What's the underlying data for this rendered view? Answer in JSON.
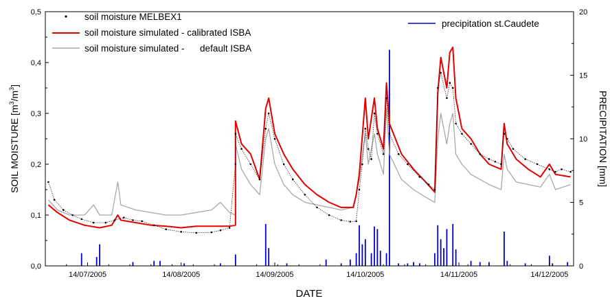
{
  "chart_data": {
    "type": "line",
    "xlabel": "DATE",
    "ylabel_left_main": "SOIL MOISTURE [m",
    "ylabel_left_sup1": "3",
    "ylabel_left_mid": "/m",
    "ylabel_left_sup2": "3",
    "ylabel_left_end": "]",
    "ylabel_right": "PRECIPITATION [mm]",
    "x_domain": [
      "2005-06-30",
      "2005-12-22"
    ],
    "x_ticks": [
      "14/07/2005",
      "14/08/2005",
      "14/09/2005",
      "14/10/2005",
      "14/11/2005",
      "14/12/2005"
    ],
    "x_tick_dates": [
      "2005-07-14",
      "2005-08-14",
      "2005-09-14",
      "2005-10-14",
      "2005-11-14",
      "2005-12-14"
    ],
    "ylim_left": [
      0,
      0.5
    ],
    "yticks_left": [
      "0,0",
      "0,1",
      "0,2",
      "0,3",
      "0,4",
      "0,5"
    ],
    "ylim_right": [
      0,
      20
    ],
    "yticks_right": [
      "0",
      "5",
      "10",
      "15",
      "20"
    ],
    "legend": [
      {
        "label": "soil moisture MELBEX1",
        "color": "#000000",
        "marker": "dot"
      },
      {
        "label": "soil moisture simulated - calibrated ISBA",
        "color": "#e00000",
        "marker": "line"
      },
      {
        "label": "soil moisture simulated -      default ISBA",
        "color": "#a8a8a8",
        "marker": "line"
      },
      {
        "label": "precipitation st.Caudete",
        "color": "#0000cc",
        "marker": "line"
      }
    ],
    "series": [
      {
        "name": "soil moisture MELBEX1",
        "axis": "left",
        "color": "#000000",
        "points": [
          [
            "2005-07-01",
            0.165
          ],
          [
            "2005-07-03",
            0.13
          ],
          [
            "2005-07-06",
            0.11
          ],
          [
            "2005-07-09",
            0.1
          ],
          [
            "2005-07-12",
            0.092
          ],
          [
            "2005-07-16",
            0.085
          ],
          [
            "2005-07-20",
            0.085
          ],
          [
            "2005-07-23",
            0.09
          ],
          [
            "2005-07-26",
            0.095
          ],
          [
            "2005-07-29",
            0.09
          ],
          [
            "2005-08-01",
            0.088
          ],
          [
            "2005-08-05",
            0.08
          ],
          [
            "2005-08-09",
            0.072
          ],
          [
            "2005-08-14",
            0.067
          ],
          [
            "2005-08-19",
            0.065
          ],
          [
            "2005-08-24",
            0.066
          ],
          [
            "2005-08-27",
            0.07
          ],
          [
            "2005-08-30",
            0.075
          ],
          [
            "2005-09-01",
            0.2
          ],
          [
            "2005-09-01",
            0.26
          ],
          [
            "2005-09-03",
            0.23
          ],
          [
            "2005-09-06",
            0.2
          ],
          [
            "2005-09-09",
            0.17
          ],
          [
            "2005-09-11",
            0.27
          ],
          [
            "2005-09-12",
            0.3
          ],
          [
            "2005-09-14",
            0.25
          ],
          [
            "2005-09-17",
            0.2
          ],
          [
            "2005-09-20",
            0.17
          ],
          [
            "2005-09-24",
            0.14
          ],
          [
            "2005-09-28",
            0.115
          ],
          [
            "2005-10-02",
            0.1
          ],
          [
            "2005-10-06",
            0.09
          ],
          [
            "2005-10-09",
            0.087
          ],
          [
            "2005-10-11",
            0.088
          ],
          [
            "2005-10-12",
            0.15
          ],
          [
            "2005-10-13",
            0.2
          ],
          [
            "2005-10-14",
            0.27
          ],
          [
            "2005-10-15",
            0.23
          ],
          [
            "2005-10-16",
            0.21
          ],
          [
            "2005-10-17",
            0.3
          ],
          [
            "2005-10-18",
            0.26
          ],
          [
            "2005-10-20",
            0.22
          ],
          [
            "2005-10-21",
            0.33
          ],
          [
            "2005-10-22",
            0.26
          ],
          [
            "2005-10-25",
            0.22
          ],
          [
            "2005-10-28",
            0.2
          ],
          [
            "2005-11-01",
            0.175
          ],
          [
            "2005-11-04",
            0.16
          ],
          [
            "2005-11-06",
            0.15
          ],
          [
            "2005-11-07",
            0.35
          ],
          [
            "2005-11-08",
            0.38
          ],
          [
            "2005-11-10",
            0.33
          ],
          [
            "2005-11-11",
            0.36
          ],
          [
            "2005-11-12",
            0.35
          ],
          [
            "2005-11-13",
            0.28
          ],
          [
            "2005-11-15",
            0.26
          ],
          [
            "2005-11-18",
            0.24
          ],
          [
            "2005-11-21",
            0.22
          ],
          [
            "2005-11-24",
            0.21
          ],
          [
            "2005-11-26",
            0.205
          ],
          [
            "2005-11-28",
            0.2
          ],
          [
            "2005-11-29",
            0.26
          ],
          [
            "2005-11-30",
            0.25
          ],
          [
            "2005-12-02",
            0.23
          ],
          [
            "2005-12-06",
            0.21
          ],
          [
            "2005-12-10",
            0.2
          ],
          [
            "2005-12-14",
            0.19
          ],
          [
            "2005-12-16",
            0.185
          ],
          [
            "2005-12-18",
            0.19
          ],
          [
            "2005-12-21",
            0.185
          ]
        ]
      },
      {
        "name": "soil moisture simulated - calibrated ISBA",
        "axis": "left",
        "color": "#e00000",
        "points": [
          [
            "2005-07-01",
            0.12
          ],
          [
            "2005-07-04",
            0.105
          ],
          [
            "2005-07-08",
            0.09
          ],
          [
            "2005-07-13",
            0.08
          ],
          [
            "2005-07-18",
            0.075
          ],
          [
            "2005-07-22",
            0.08
          ],
          [
            "2005-07-24",
            0.1
          ],
          [
            "2005-07-25",
            0.09
          ],
          [
            "2005-07-30",
            0.085
          ],
          [
            "2005-08-04",
            0.08
          ],
          [
            "2005-08-09",
            0.078
          ],
          [
            "2005-08-14",
            0.075
          ],
          [
            "2005-08-19",
            0.078
          ],
          [
            "2005-08-24",
            0.078
          ],
          [
            "2005-08-30",
            0.078
          ],
          [
            "2005-09-01",
            0.08
          ],
          [
            "2005-09-01",
            0.285
          ],
          [
            "2005-09-03",
            0.24
          ],
          [
            "2005-09-06",
            0.22
          ],
          [
            "2005-09-09",
            0.17
          ],
          [
            "2005-09-11",
            0.31
          ],
          [
            "2005-09-12",
            0.33
          ],
          [
            "2005-09-14",
            0.26
          ],
          [
            "2005-09-17",
            0.22
          ],
          [
            "2005-09-20",
            0.19
          ],
          [
            "2005-09-24",
            0.16
          ],
          [
            "2005-09-28",
            0.14
          ],
          [
            "2005-10-02",
            0.125
          ],
          [
            "2005-10-06",
            0.115
          ],
          [
            "2005-10-10",
            0.115
          ],
          [
            "2005-10-11",
            0.14
          ],
          [
            "2005-10-12",
            0.18
          ],
          [
            "2005-10-14",
            0.33
          ],
          [
            "2005-10-15",
            0.25
          ],
          [
            "2005-10-17",
            0.33
          ],
          [
            "2005-10-18",
            0.27
          ],
          [
            "2005-10-20",
            0.23
          ],
          [
            "2005-10-21",
            0.36
          ],
          [
            "2005-10-22",
            0.28
          ],
          [
            "2005-10-26",
            0.22
          ],
          [
            "2005-10-30",
            0.19
          ],
          [
            "2005-11-03",
            0.165
          ],
          [
            "2005-11-06",
            0.145
          ],
          [
            "2005-11-07",
            0.34
          ],
          [
            "2005-11-08",
            0.41
          ],
          [
            "2005-11-10",
            0.35
          ],
          [
            "2005-11-11",
            0.42
          ],
          [
            "2005-11-12",
            0.43
          ],
          [
            "2005-11-13",
            0.33
          ],
          [
            "2005-11-15",
            0.27
          ],
          [
            "2005-11-18",
            0.25
          ],
          [
            "2005-11-21",
            0.22
          ],
          [
            "2005-11-24",
            0.2
          ],
          [
            "2005-11-28",
            0.19
          ],
          [
            "2005-11-29",
            0.28
          ],
          [
            "2005-11-30",
            0.24
          ],
          [
            "2005-12-03",
            0.21
          ],
          [
            "2005-12-07",
            0.19
          ],
          [
            "2005-12-11",
            0.175
          ],
          [
            "2005-12-14",
            0.2
          ],
          [
            "2005-12-16",
            0.18
          ],
          [
            "2005-12-21",
            0.175
          ]
        ]
      },
      {
        "name": "soil moisture simulated -      default ISBA",
        "axis": "left",
        "color": "#a8a8a8",
        "points": [
          [
            "2005-07-01",
            0.13
          ],
          [
            "2005-07-04",
            0.11
          ],
          [
            "2005-07-08",
            0.1
          ],
          [
            "2005-07-13",
            0.1
          ],
          [
            "2005-07-16",
            0.12
          ],
          [
            "2005-07-18",
            0.1
          ],
          [
            "2005-07-22",
            0.1
          ],
          [
            "2005-07-24",
            0.165
          ],
          [
            "2005-07-25",
            0.12
          ],
          [
            "2005-07-30",
            0.11
          ],
          [
            "2005-08-04",
            0.105
          ],
          [
            "2005-08-09",
            0.1
          ],
          [
            "2005-08-14",
            0.1
          ],
          [
            "2005-08-19",
            0.105
          ],
          [
            "2005-08-24",
            0.11
          ],
          [
            "2005-08-27",
            0.125
          ],
          [
            "2005-08-30",
            0.105
          ],
          [
            "2005-09-01",
            0.1
          ],
          [
            "2005-09-01",
            0.24
          ],
          [
            "2005-09-03",
            0.19
          ],
          [
            "2005-09-06",
            0.16
          ],
          [
            "2005-09-09",
            0.14
          ],
          [
            "2005-09-11",
            0.25
          ],
          [
            "2005-09-12",
            0.27
          ],
          [
            "2005-09-14",
            0.2
          ],
          [
            "2005-09-17",
            0.16
          ],
          [
            "2005-09-20",
            0.14
          ],
          [
            "2005-09-24",
            0.125
          ],
          [
            "2005-09-28",
            0.12
          ],
          [
            "2005-10-02",
            0.115
          ],
          [
            "2005-10-06",
            0.11
          ],
          [
            "2005-10-10",
            0.115
          ],
          [
            "2005-10-12",
            0.17
          ],
          [
            "2005-10-14",
            0.26
          ],
          [
            "2005-10-15",
            0.2
          ],
          [
            "2005-10-17",
            0.26
          ],
          [
            "2005-10-18",
            0.22
          ],
          [
            "2005-10-20",
            0.18
          ],
          [
            "2005-10-21",
            0.31
          ],
          [
            "2005-10-22",
            0.22
          ],
          [
            "2005-10-26",
            0.17
          ],
          [
            "2005-10-30",
            0.15
          ],
          [
            "2005-11-03",
            0.135
          ],
          [
            "2005-11-06",
            0.125
          ],
          [
            "2005-11-07",
            0.25
          ],
          [
            "2005-11-08",
            0.3
          ],
          [
            "2005-11-10",
            0.24
          ],
          [
            "2005-11-11",
            0.28
          ],
          [
            "2005-11-12",
            0.3
          ],
          [
            "2005-11-13",
            0.22
          ],
          [
            "2005-11-15",
            0.2
          ],
          [
            "2005-11-18",
            0.18
          ],
          [
            "2005-11-21",
            0.17
          ],
          [
            "2005-11-24",
            0.16
          ],
          [
            "2005-11-28",
            0.15
          ],
          [
            "2005-11-29",
            0.22
          ],
          [
            "2005-11-30",
            0.19
          ],
          [
            "2005-12-03",
            0.165
          ],
          [
            "2005-12-07",
            0.16
          ],
          [
            "2005-12-11",
            0.155
          ],
          [
            "2005-12-14",
            0.18
          ],
          [
            "2005-12-16",
            0.15
          ],
          [
            "2005-12-21",
            0.16
          ]
        ]
      },
      {
        "name": "precipitation st.Caudete",
        "axis": "right",
        "color": "#0000cc",
        "type": "bar",
        "points": [
          [
            "2005-07-12",
            1.0
          ],
          [
            "2005-07-17",
            0.7
          ],
          [
            "2005-07-18",
            1.7
          ],
          [
            "2005-07-29",
            0.3
          ],
          [
            "2005-08-05",
            0.4
          ],
          [
            "2005-08-07",
            0.4
          ],
          [
            "2005-08-15",
            0.2
          ],
          [
            "2005-08-27",
            0.2
          ],
          [
            "2005-09-01",
            0.9
          ],
          [
            "2005-09-11",
            3.3
          ],
          [
            "2005-09-12",
            1.4
          ],
          [
            "2005-09-18",
            0.2
          ],
          [
            "2005-10-01",
            0.5
          ],
          [
            "2005-10-06",
            0.2
          ],
          [
            "2005-10-09",
            0.5
          ],
          [
            "2005-10-11",
            1.0
          ],
          [
            "2005-10-12",
            3.2
          ],
          [
            "2005-10-13",
            1.7
          ],
          [
            "2005-10-14",
            2.1
          ],
          [
            "2005-10-16",
            1.0
          ],
          [
            "2005-10-17",
            3.1
          ],
          [
            "2005-10-18",
            2.9
          ],
          [
            "2005-10-19",
            1.2
          ],
          [
            "2005-10-21",
            1.0
          ],
          [
            "2005-10-22",
            17.0
          ],
          [
            "2005-10-25",
            0.2
          ],
          [
            "2005-10-28",
            0.2
          ],
          [
            "2005-10-30",
            0.3
          ],
          [
            "2005-11-01",
            0.2
          ],
          [
            "2005-11-06",
            1.0
          ],
          [
            "2005-11-07",
            3.2
          ],
          [
            "2005-11-08",
            2.1
          ],
          [
            "2005-11-09",
            1.4
          ],
          [
            "2005-11-10",
            2.9
          ],
          [
            "2005-11-12",
            3.3
          ],
          [
            "2005-11-13",
            1.3
          ],
          [
            "2005-11-18",
            0.4
          ],
          [
            "2005-11-21",
            0.3
          ],
          [
            "2005-11-24",
            0.3
          ],
          [
            "2005-11-29",
            2.7
          ],
          [
            "2005-11-30",
            0.4
          ],
          [
            "2005-12-06",
            0.2
          ],
          [
            "2005-12-14",
            0.8
          ],
          [
            "2005-12-15",
            0.2
          ],
          [
            "2005-12-20",
            0.3
          ]
        ]
      }
    ]
  }
}
